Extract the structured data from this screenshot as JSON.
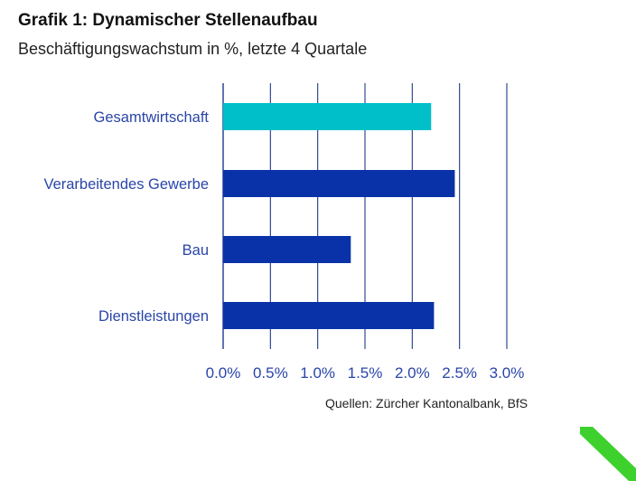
{
  "header": {
    "title": "Grafik 1: Dynamischer Stellenaufbau",
    "subtitle": "Beschäftigungswachstum in %, letzte 4 Quartale"
  },
  "footer": {
    "source": "Quellen: Zürcher Kantonalbank, BfS"
  },
  "colors": {
    "highlight_bar": "#00BFC8",
    "bar": "#0A32A8",
    "label_text": "#2A45A8",
    "grid": "#1F3A8C",
    "accent_green": "#3ED12E"
  },
  "chart_data": {
    "type": "bar",
    "orientation": "horizontal",
    "categories": [
      "Gesamtwirtschaft",
      "Verarbeitendes Gewerbe",
      "Bau",
      "Dienstleistungen"
    ],
    "values": [
      2.2,
      2.45,
      1.35,
      2.23
    ],
    "highlight_index": 0,
    "xlim": [
      0,
      3.0
    ],
    "xticks": [
      "0.0%",
      "0.5%",
      "1.0%",
      "1.5%",
      "2.0%",
      "2.5%",
      "3.0%"
    ],
    "xtick_values": [
      0,
      0.5,
      1.0,
      1.5,
      2.0,
      2.5,
      3.0
    ],
    "grid": true,
    "legend": "none"
  }
}
